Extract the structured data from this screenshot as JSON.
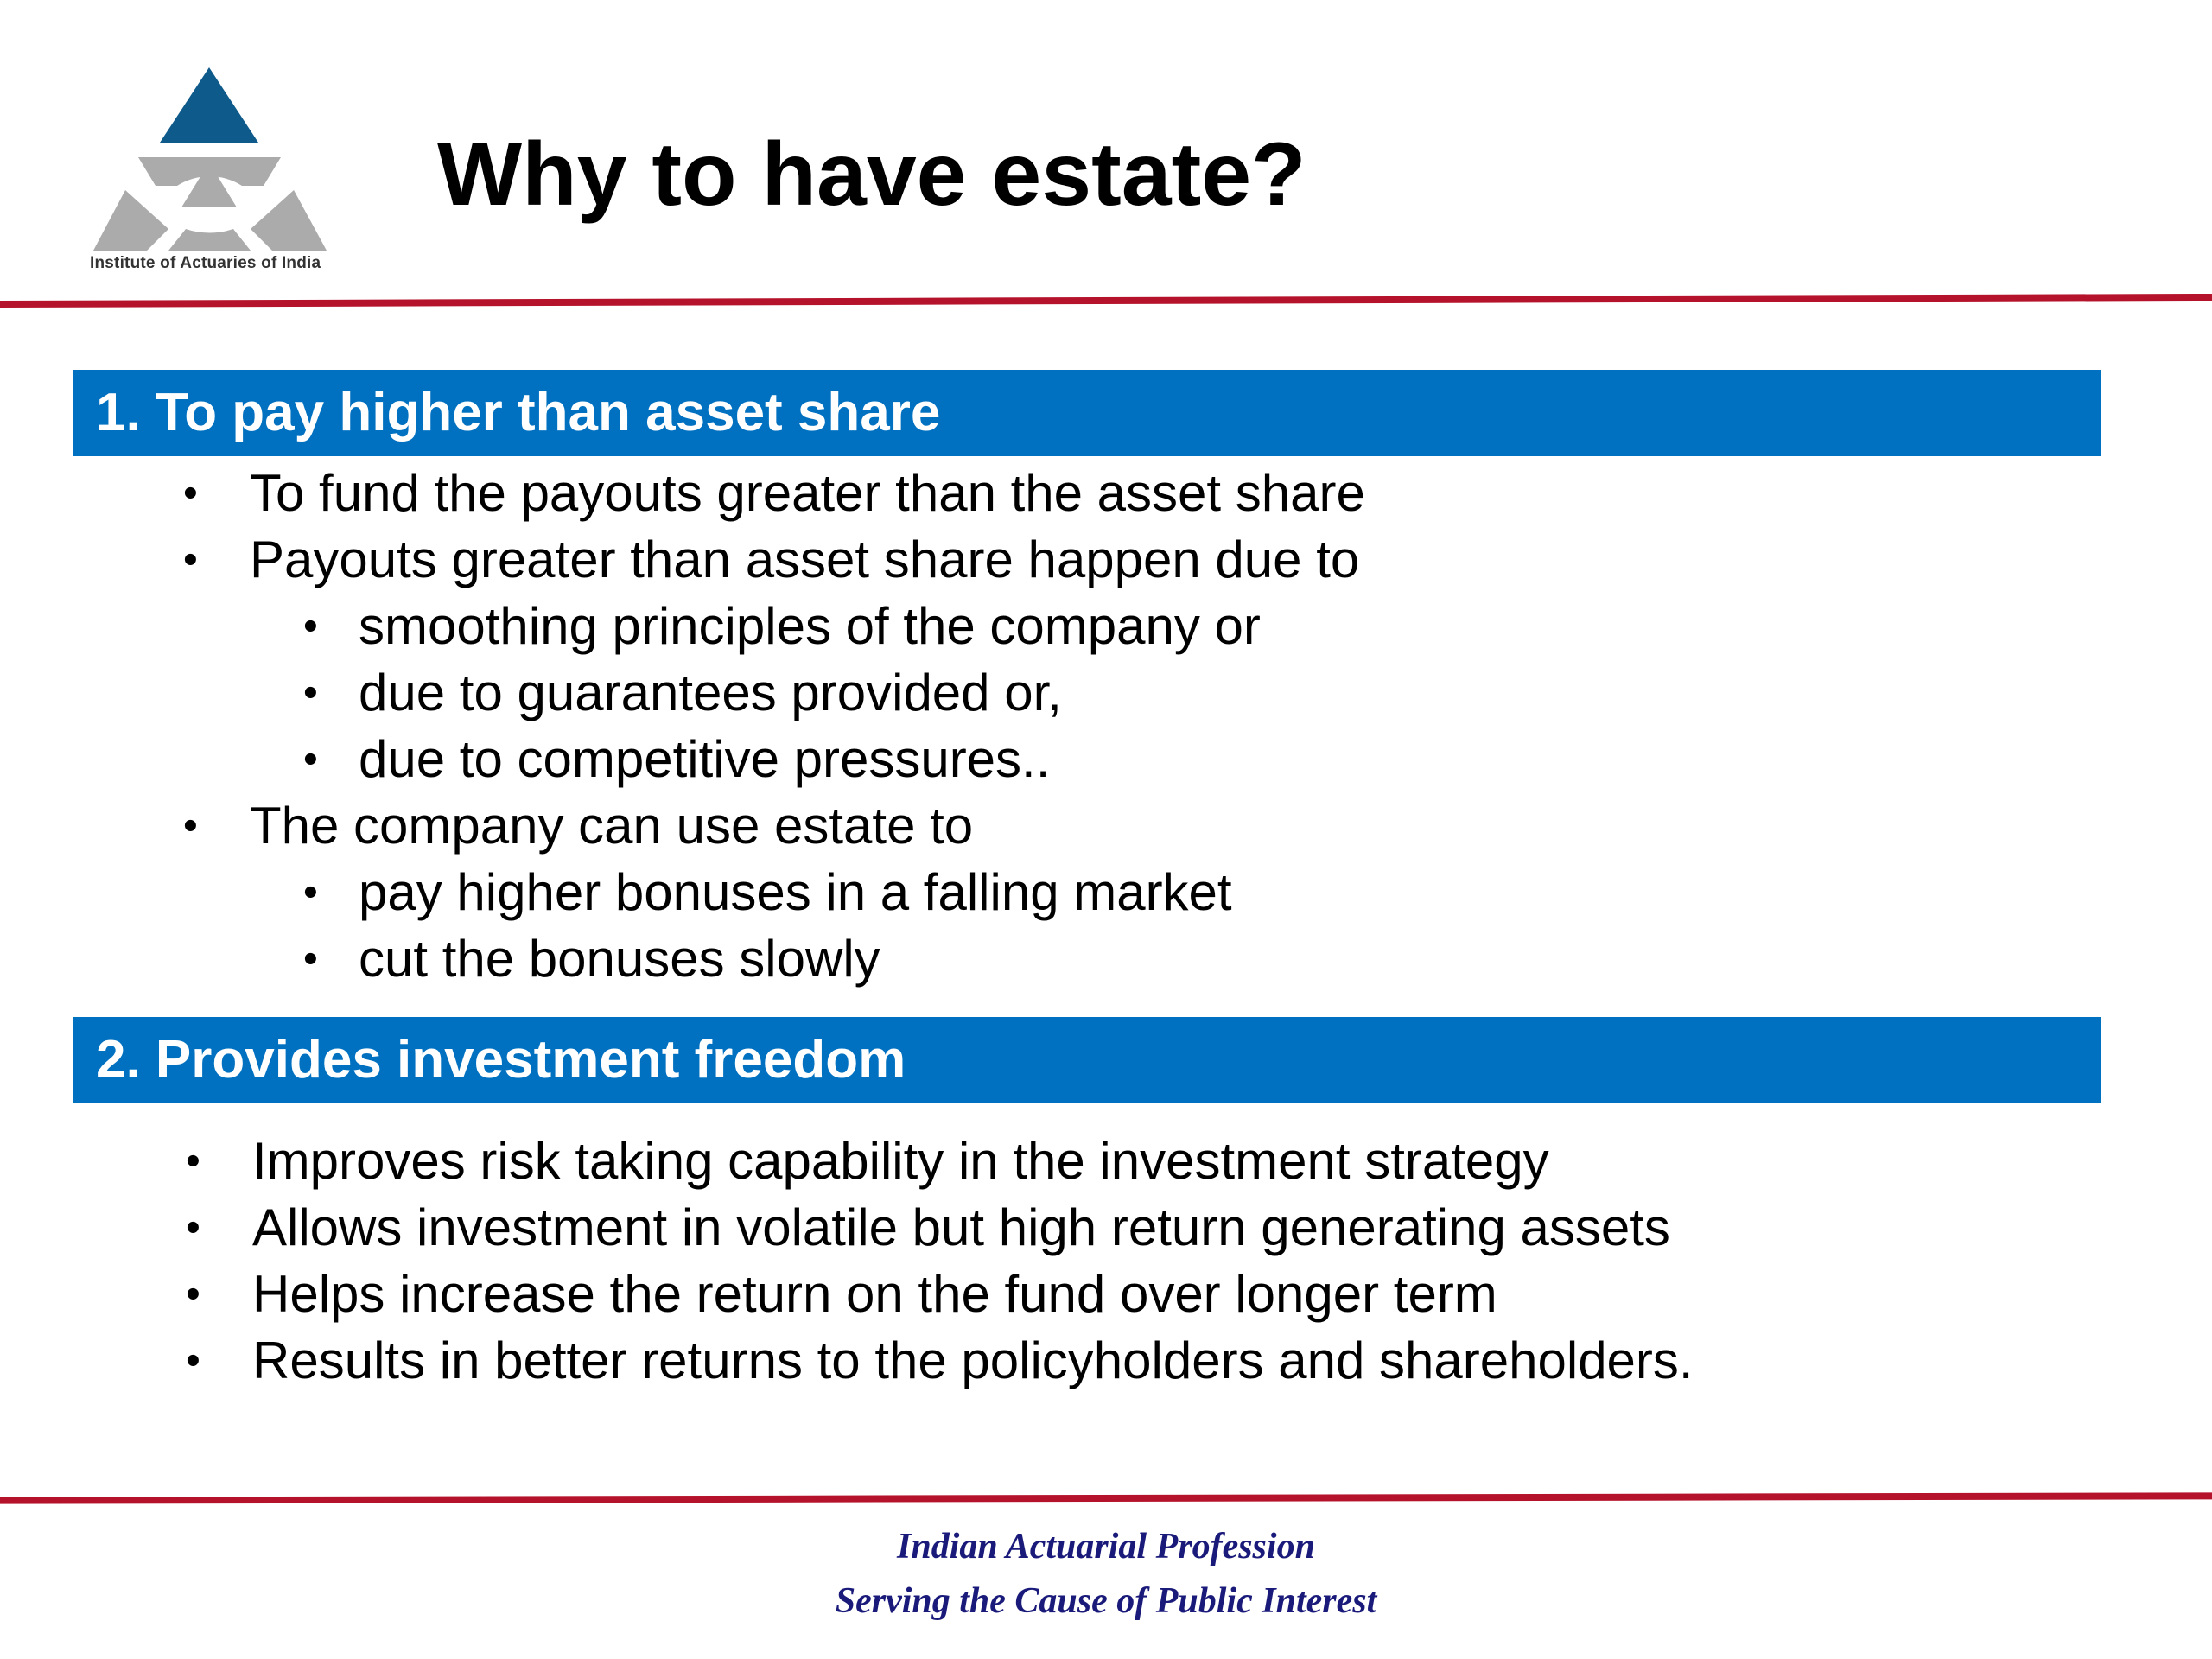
{
  "logo": {
    "text": "Institute of Actuaries of India",
    "colors": {
      "triangle": "#0e5a8a",
      "gray": "#ababab"
    }
  },
  "title": "Why to have estate?",
  "sections": [
    {
      "heading": "1. To pay higher than asset share",
      "items": [
        {
          "text": "To fund the payouts greater than the asset share",
          "level": 1
        },
        {
          "text": "Payouts greater than asset share happen due to",
          "level": 1
        },
        {
          "text": "smoothing principles of the company or",
          "level": 2
        },
        {
          "text": "due to guarantees provided or,",
          "level": 2
        },
        {
          "text": "due to competitive pressures..",
          "level": 2
        },
        {
          "text": "The company can use estate to",
          "level": 1
        },
        {
          "text": "pay higher bonuses in a falling market",
          "level": 2
        },
        {
          "text": "cut the bonuses slowly",
          "level": 2
        }
      ]
    },
    {
      "heading": "2. Provides investment freedom",
      "items": [
        {
          "text": "Improves risk taking capability in the investment strategy",
          "level": 1
        },
        {
          "text": "Allows investment in volatile but high return generating assets",
          "level": 1
        },
        {
          "text": "Helps increase the return on the fund over longer term",
          "level": 1
        },
        {
          "text": "Results in better returns to the policyholders and shareholders.",
          "level": 1
        }
      ]
    }
  ],
  "footer": {
    "line1": "Indian Actuarial Profession",
    "line2": "Serving the Cause of Public Interest"
  },
  "colors": {
    "header_bar": "#0070c0",
    "rule": "#b5122b",
    "footer_text": "#1a1a7a"
  }
}
